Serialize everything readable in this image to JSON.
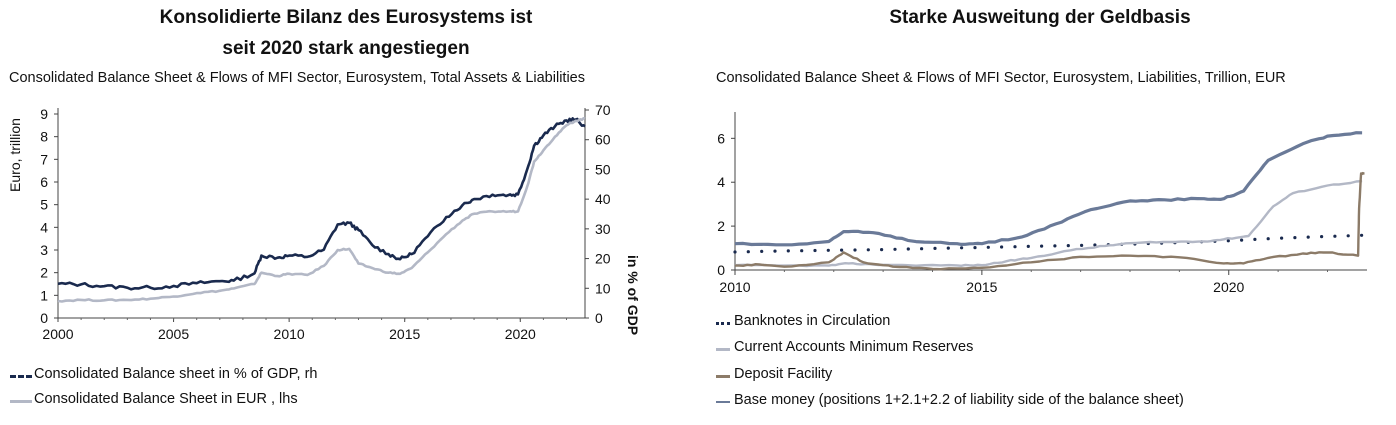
{
  "left_panel": {
    "title_line1": "Konsolidierte Bilanz des Eurosystems ist",
    "title_line2": "seit 2020 stark angestiegen",
    "subtitle": "Consolidated Balance Sheet & Flows of MFI Sector, Eurosystem, Total Assets & Liabilities",
    "legend": [
      {
        "label": "Consolidated Balance sheet in % of GDP, rh",
        "color": "#1a2a4e",
        "style": "dashed"
      },
      {
        "label": "Consolidated Balance Sheet in EUR , lhs",
        "color": "#b3b8c6",
        "style": "solid"
      }
    ]
  },
  "right_panel": {
    "title": "Starke Ausweitung der Geldbasis",
    "subtitle": "Consolidated Balance Sheet & Flows of MFI Sector, Eurosystem, Liabilities, Trillion, EUR",
    "legend": [
      {
        "label": "Banknotes in Circulation",
        "color": "#1a2a4e",
        "style": "dotted"
      },
      {
        "label": "Current Accounts Minimum Reserves",
        "color": "#b3b8c6",
        "style": "solid"
      },
      {
        "label": "Deposit Facility",
        "color": "#8c7b68",
        "style": "solid"
      },
      {
        "label": "Base money (positions 1+2.1+2.2 of liability side of the balance sheet)",
        "color": "#6a7a98",
        "style": "marker"
      }
    ]
  },
  "chart_data": [
    {
      "type": "line",
      "title": "Consolidated Balance Sheet & Flows of MFI Sector, Eurosystem, Total Assets & Liabilities",
      "ylabel": "Euro, trillion",
      "y2label": "in % of GDP",
      "xlim": [
        2000,
        2022.8
      ],
      "ylim": [
        0,
        9
      ],
      "y2lim": [
        0,
        70
      ],
      "x_ticks": [
        "2000",
        "2005",
        "2010",
        "2015",
        "2020"
      ],
      "y_ticks": [
        "0",
        "1",
        "2",
        "3",
        "4",
        "5",
        "6",
        "7",
        "8",
        "9"
      ],
      "y2_ticks": [
        "0",
        "10",
        "20",
        "30",
        "40",
        "50",
        "60",
        "70"
      ],
      "legend_position": "bottom-left",
      "grid": false,
      "series": [
        {
          "name": "Consolidated Balance sheet in % of GDP, rh",
          "axis": "right",
          "color": "#1a2a4e",
          "width": 2.6,
          "x": [
            2000,
            2001,
            2002,
            2003,
            2004,
            2005,
            2006,
            2007,
            2007.6,
            2008.5,
            2008.8,
            2009.5,
            2010,
            2010.8,
            2011.5,
            2012.1,
            2012.6,
            2013,
            2013.6,
            2014.3,
            2014.8,
            2015.3,
            2016,
            2016.8,
            2017.5,
            2018,
            2018.8,
            2019.5,
            2019.9,
            2020.3,
            2020.6,
            2021,
            2021.5,
            2022,
            2022.4,
            2022.8
          ],
          "y": [
            11.5,
            11.3,
            10.7,
            10.2,
            10.2,
            10.8,
            11.7,
            12.4,
            12.6,
            15,
            21,
            20.3,
            21,
            20.6,
            23,
            31.5,
            32,
            29.6,
            24.5,
            21.5,
            19.8,
            21.5,
            27.5,
            34,
            38,
            40,
            41.5,
            41.4,
            41.6,
            50,
            58,
            61.5,
            64.5,
            66.5,
            66.8,
            64.5
          ]
        },
        {
          "name": "Consolidated Balance Sheet in EUR , lhs",
          "axis": "left",
          "color": "#b3b8c6",
          "width": 2.6,
          "x": [
            2000,
            2001,
            2002,
            2003,
            2004,
            2005,
            2006,
            2007,
            2007.6,
            2008.5,
            2008.8,
            2009.5,
            2010,
            2010.8,
            2011.5,
            2012.1,
            2012.6,
            2013,
            2013.6,
            2014.3,
            2014.8,
            2015.3,
            2016,
            2016.8,
            2017.5,
            2018,
            2018.8,
            2019.5,
            2019.9,
            2020.3,
            2020.6,
            2021,
            2021.5,
            2022,
            2022.4,
            2022.8
          ],
          "y": [
            0.75,
            0.8,
            0.78,
            0.8,
            0.85,
            0.95,
            1.1,
            1.2,
            1.3,
            1.5,
            2.0,
            1.85,
            1.95,
            1.9,
            2.3,
            3.0,
            3.05,
            2.4,
            2.2,
            2.0,
            1.95,
            2.2,
            2.9,
            3.7,
            4.3,
            4.6,
            4.7,
            4.7,
            4.7,
            5.8,
            6.9,
            7.4,
            8.0,
            8.5,
            8.7,
            8.8
          ]
        }
      ]
    },
    {
      "type": "line",
      "title": "Consolidated Balance Sheet & Flows of MFI Sector, Eurosystem, Liabilities, Trillion, EUR",
      "xlim": [
        2010,
        2022.8
      ],
      "ylim": [
        0,
        7.2
      ],
      "x_ticks": [
        "2010",
        "2015",
        "2020"
      ],
      "y_ticks": [
        "0",
        "2",
        "4",
        "6"
      ],
      "legend_position": "bottom-left",
      "grid": false,
      "series": [
        {
          "name": "Banknotes in Circulation",
          "color": "#1a2a4e",
          "style": "dotted",
          "x": [
            2010,
            2011,
            2012,
            2013,
            2014,
            2015,
            2016,
            2017,
            2018,
            2019,
            2020,
            2021,
            2022,
            2022.7
          ],
          "y": [
            0.82,
            0.87,
            0.9,
            0.93,
            0.98,
            1.03,
            1.08,
            1.12,
            1.18,
            1.25,
            1.33,
            1.45,
            1.53,
            1.58
          ]
        },
        {
          "name": "Current Accounts Minimum Reserves",
          "color": "#b3b8c6",
          "style": "solid",
          "x": [
            2010,
            2011,
            2011.9,
            2012.3,
            2012.8,
            2013.5,
            2014.5,
            2015,
            2015.5,
            2016,
            2016.8,
            2017.5,
            2018,
            2018.8,
            2019.5,
            2019.9,
            2020.4,
            2020.9,
            2021.3,
            2022,
            2022.7
          ],
          "y": [
            0.22,
            0.2,
            0.2,
            0.3,
            0.25,
            0.22,
            0.21,
            0.22,
            0.4,
            0.55,
            0.9,
            1.1,
            1.22,
            1.28,
            1.3,
            1.4,
            1.55,
            2.9,
            3.5,
            3.85,
            4.05
          ]
        },
        {
          "name": "Deposit Facility",
          "color": "#8c7b68",
          "style": "solid",
          "x": [
            2010,
            2010.5,
            2011,
            2011.9,
            2012.2,
            2012.6,
            2013.2,
            2014,
            2015,
            2016,
            2017,
            2018,
            2019,
            2019.9,
            2020.3,
            2020.8,
            2021.5,
            2022,
            2022.62,
            2022.64,
            2022.68,
            2022.75
          ],
          "y": [
            0.2,
            0.25,
            0.15,
            0.35,
            0.8,
            0.35,
            0.15,
            0.05,
            0.1,
            0.35,
            0.6,
            0.65,
            0.58,
            0.3,
            0.3,
            0.55,
            0.75,
            0.8,
            0.65,
            2.8,
            4.4,
            4.4
          ]
        },
        {
          "name": "Base money (positions 1+2.1+2.2 of liability side of the balance sheet)",
          "color": "#6a7a98",
          "style": "solid-marker",
          "x": [
            2010,
            2011,
            2011.9,
            2012.2,
            2012.8,
            2013.5,
            2014.5,
            2015,
            2015.8,
            2016.5,
            2017.2,
            2018,
            2018.7,
            2019.5,
            2019.9,
            2020.3,
            2020.8,
            2021.5,
            2022,
            2022.7
          ],
          "y": [
            1.2,
            1.15,
            1.3,
            1.75,
            1.7,
            1.35,
            1.2,
            1.2,
            1.5,
            2.1,
            2.75,
            3.15,
            3.2,
            3.25,
            3.25,
            3.6,
            5.0,
            5.75,
            6.1,
            6.25
          ]
        }
      ]
    }
  ]
}
